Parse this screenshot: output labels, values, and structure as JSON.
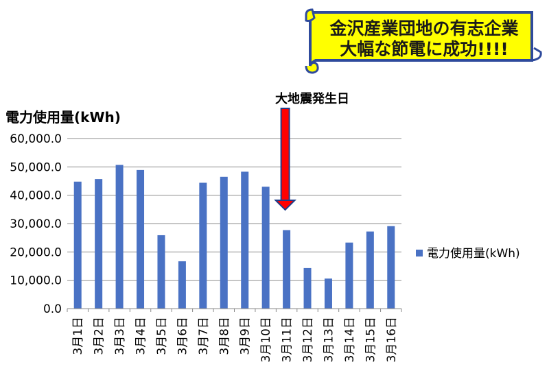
{
  "banner": {
    "line1": "金沢産業団地の有志企業",
    "line2": "大幅な節電に成功!!!!",
    "fill_color": "#ffff00",
    "border_color": "#2e4a9c"
  },
  "annotation": {
    "text": "大地震発生日",
    "arrow_color": "#ff0000",
    "target_category": "3月11日"
  },
  "chart_data": {
    "type": "bar",
    "title": "電力使用量(kWh)",
    "xlabel": "",
    "ylabel": "",
    "categories": [
      "3月1日",
      "3月2日",
      "3月3日",
      "3月4日",
      "3月5日",
      "3月6日",
      "3月7日",
      "3月8日",
      "3月9日",
      "3月10日",
      "3月11日",
      "3月12日",
      "3月13日",
      "3月14日",
      "3月15日",
      "3月16日"
    ],
    "series": [
      {
        "name": "電力使用量(kWh)",
        "color": "#4a72c4",
        "values": [
          44800,
          45700,
          50700,
          48900,
          25900,
          16700,
          44400,
          46500,
          48300,
          43000,
          27700,
          14300,
          10600,
          23300,
          27200,
          29100
        ]
      }
    ],
    "ylim": [
      0,
      60000
    ],
    "yticks": [
      "0.0",
      "10,000.0",
      "20,000.0",
      "30,000.0",
      "40,000.0",
      "50,000.0",
      "60,000.0"
    ],
    "grid": true,
    "legend_position": "right"
  }
}
